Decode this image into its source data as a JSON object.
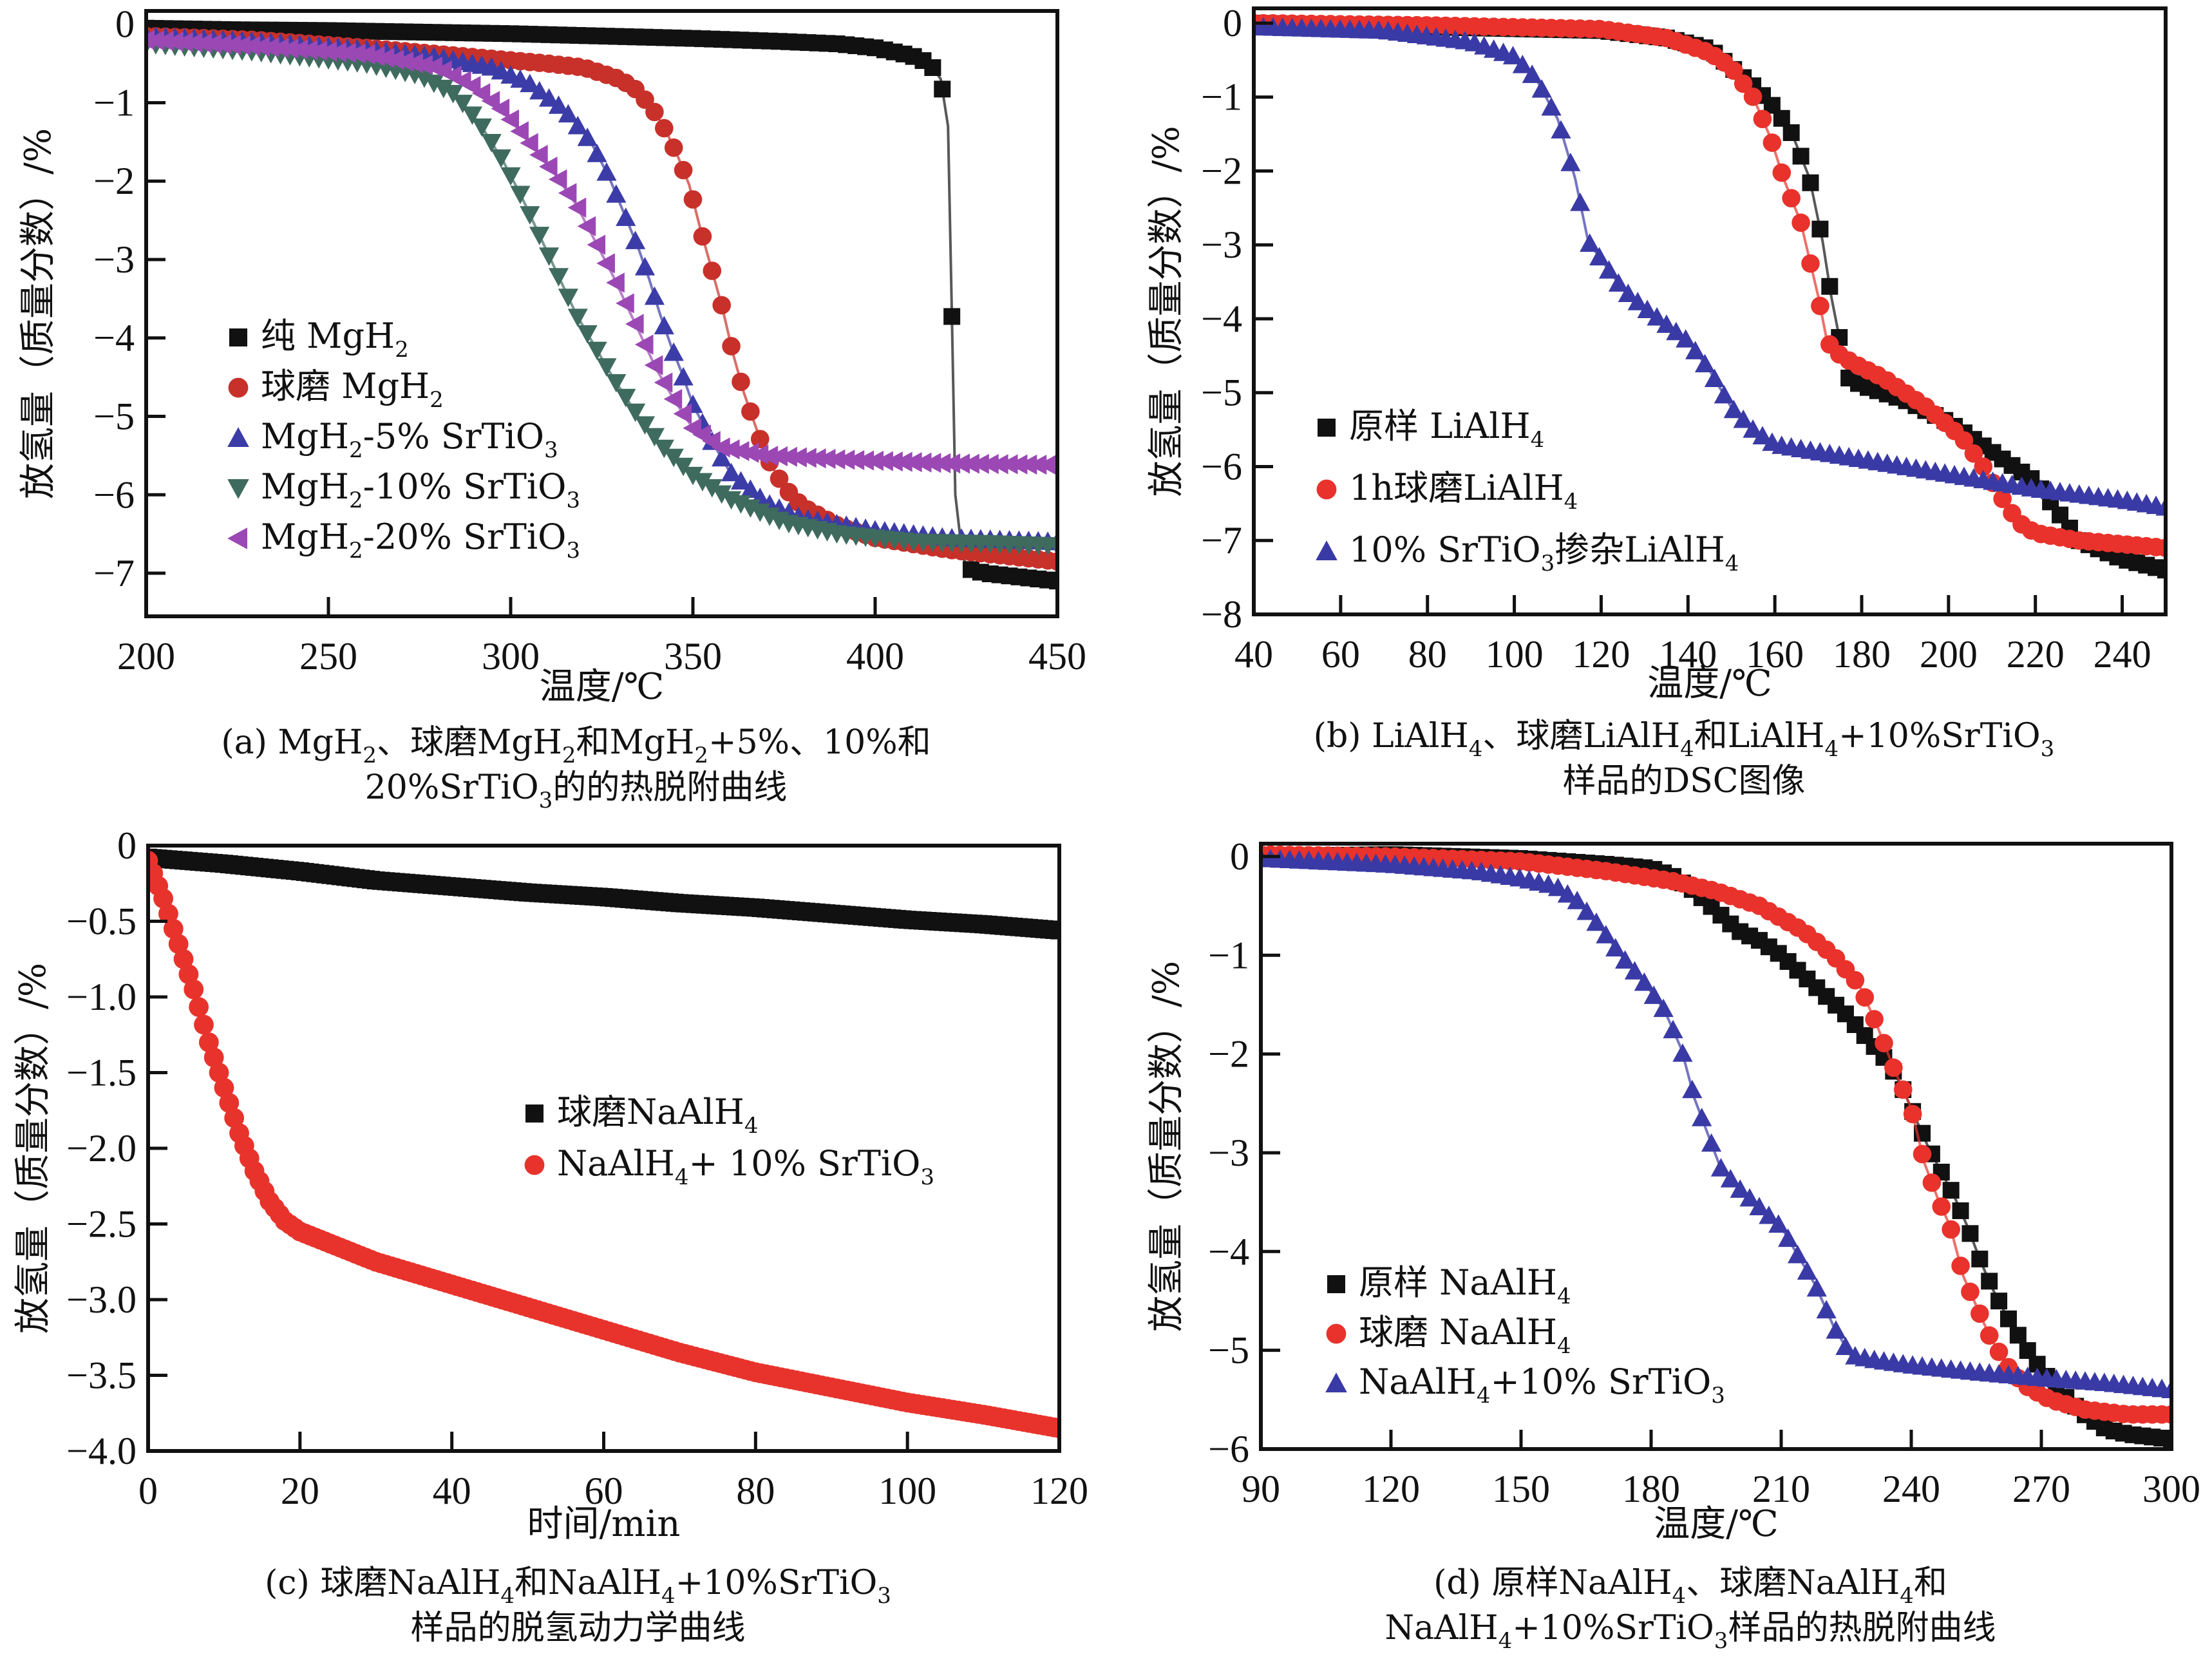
{
  "figure_title": "",
  "chart_data": [
    {
      "id": "a",
      "type": "line",
      "caption": [
        "(a)  MgH₂、球磨MgH₂和MgH₂+5%、10%和",
        "20%SrTiO₃的的热脱附曲线"
      ],
      "xlabel": "温度/℃",
      "ylabel": "放氢量（质量分数）/%",
      "xlim": [
        200,
        450
      ],
      "ylim": [
        -7.55,
        0.17
      ],
      "xticks": [
        200,
        250,
        300,
        350,
        400,
        450
      ],
      "xtick_labels": [
        "200",
        "250",
        "300",
        "350",
        "400",
        "450"
      ],
      "yticks": [
        0,
        -1,
        -2,
        -3,
        -4,
        -5,
        -6,
        -7
      ],
      "ytick_labels": [
        "0",
        "−1",
        "−2",
        "−3",
        "−4",
        "−5",
        "−6",
        "−7"
      ],
      "legend_position": "center-left",
      "series": [
        {
          "name": "纯 MgH₂",
          "color": "#111111",
          "marker": "square",
          "x": [
            200,
            225,
            250,
            275,
            300,
            325,
            350,
            375,
            390,
            400,
            410,
            415,
            418,
            420,
            421,
            422,
            424,
            426,
            430,
            440,
            450
          ],
          "y": [
            -0.05,
            -0.07,
            -0.08,
            -0.1,
            -0.12,
            -0.15,
            -0.18,
            -0.22,
            -0.25,
            -0.3,
            -0.4,
            -0.5,
            -0.7,
            -1.3,
            -3.6,
            -6.0,
            -6.8,
            -6.95,
            -7.0,
            -7.05,
            -7.1
          ]
        },
        {
          "name": "球磨 MgH₂",
          "color": "#c8302a",
          "marker": "circle",
          "x": [
            200,
            230,
            260,
            290,
            310,
            320,
            330,
            335,
            340,
            343,
            346,
            349,
            352,
            355,
            358,
            361,
            364,
            367,
            370,
            375,
            380,
            390,
            400,
            420,
            440,
            450
          ],
          "y": [
            -0.15,
            -0.2,
            -0.3,
            -0.42,
            -0.5,
            -0.55,
            -0.7,
            -0.85,
            -1.15,
            -1.4,
            -1.7,
            -2.05,
            -2.6,
            -3.1,
            -3.6,
            -4.2,
            -4.7,
            -5.1,
            -5.5,
            -5.9,
            -6.15,
            -6.4,
            -6.55,
            -6.7,
            -6.8,
            -6.85
          ]
        },
        {
          "name": "MgH₂-5% SrTiO₃",
          "color": "#3c3ca8",
          "marker": "triangle-up",
          "x": [
            200,
            230,
            260,
            280,
            295,
            305,
            315,
            322,
            327,
            331,
            335,
            338,
            341,
            344,
            347,
            350,
            355,
            360,
            370,
            380,
            400,
            420,
            450
          ],
          "y": [
            -0.15,
            -0.22,
            -0.32,
            -0.42,
            -0.55,
            -0.75,
            -1.1,
            -1.5,
            -1.95,
            -2.4,
            -2.85,
            -3.25,
            -3.7,
            -4.1,
            -4.45,
            -4.85,
            -5.3,
            -5.7,
            -6.1,
            -6.3,
            -6.45,
            -6.55,
            -6.6
          ]
        },
        {
          "name": "MgH₂-10% SrTiO₃",
          "color": "#3f6b5f",
          "marker": "triangle-down",
          "x": [
            200,
            230,
            260,
            275,
            285,
            292,
            298,
            303,
            308,
            313,
            318,
            323,
            328,
            335,
            342,
            350,
            360,
            375,
            390,
            410,
            430,
            450
          ],
          "y": [
            -0.25,
            -0.35,
            -0.5,
            -0.65,
            -0.9,
            -1.3,
            -1.75,
            -2.2,
            -2.7,
            -3.2,
            -3.7,
            -4.1,
            -4.5,
            -5.0,
            -5.4,
            -5.75,
            -6.05,
            -6.35,
            -6.5,
            -6.6,
            -6.62,
            -6.65
          ]
        },
        {
          "name": "MgH₂-20% SrTiO₃",
          "color": "#9b48b5",
          "marker": "triangle-left",
          "x": [
            200,
            230,
            260,
            280,
            290,
            298,
            305,
            312,
            318,
            323,
            328,
            332,
            336,
            340,
            345,
            350,
            358,
            370,
            390,
            420,
            450
          ],
          "y": [
            -0.2,
            -0.28,
            -0.38,
            -0.55,
            -0.8,
            -1.1,
            -1.5,
            -1.9,
            -2.3,
            -2.75,
            -3.2,
            -3.6,
            -4.0,
            -4.4,
            -4.8,
            -5.15,
            -5.4,
            -5.5,
            -5.55,
            -5.6,
            -5.62
          ]
        }
      ]
    },
    {
      "id": "b",
      "type": "line",
      "caption": [
        "(b) LiAlH₄、球磨LiAlH₄和LiAlH₄+10%SrTiO₃",
        "样品的DSC图像"
      ],
      "xlabel": "温度/℃",
      "ylabel": "放氢量（质量分数）/%",
      "xlim": [
        40,
        250
      ],
      "ylim": [
        -8,
        0.2
      ],
      "xticks": [
        40,
        60,
        80,
        100,
        120,
        140,
        160,
        180,
        200,
        220,
        240
      ],
      "xtick_labels": [
        "40",
        "60",
        "80",
        "100",
        "120",
        "140",
        "160",
        "180",
        "200",
        "220",
        "240"
      ],
      "yticks": [
        0,
        -1,
        -2,
        -3,
        -4,
        -5,
        -6,
        -7,
        -8
      ],
      "ytick_labels": [
        "0",
        "−1",
        "−2",
        "−3",
        "−4",
        "−5",
        "−6",
        "−7",
        "−8"
      ],
      "legend_position": "lower-left",
      "series": [
        {
          "name": "原样 LiAlH₄",
          "color": "#111111",
          "marker": "square",
          "x": [
            40,
            80,
            120,
            135,
            145,
            150,
            155,
            160,
            164,
            168,
            171,
            173,
            175,
            177,
            180,
            190,
            200,
            210,
            215,
            220,
            225,
            230,
            240,
            250
          ],
          "y": [
            0,
            -0.05,
            -0.1,
            -0.2,
            -0.35,
            -0.6,
            -0.85,
            -1.15,
            -1.5,
            -2.1,
            -2.95,
            -3.7,
            -4.3,
            -4.8,
            -4.9,
            -5.1,
            -5.4,
            -5.8,
            -6.0,
            -6.2,
            -6.6,
            -7.0,
            -7.25,
            -7.4
          ]
        },
        {
          "name": "1h球磨LiAlH₄",
          "color": "#e8322b",
          "marker": "circle",
          "x": [
            40,
            80,
            120,
            135,
            145,
            150,
            155,
            159,
            162,
            166,
            170,
            172,
            174,
            178,
            185,
            195,
            203,
            208,
            212,
            216,
            220,
            230,
            240,
            250
          ],
          "y": [
            0,
            -0.03,
            -0.08,
            -0.2,
            -0.4,
            -0.6,
            -1.0,
            -1.55,
            -2.1,
            -2.7,
            -3.7,
            -4.3,
            -4.45,
            -4.6,
            -4.8,
            -5.2,
            -5.6,
            -6.0,
            -6.4,
            -6.75,
            -6.9,
            -7.0,
            -7.05,
            -7.1
          ]
        },
        {
          "name": "10% SrTiO₃掺杂LiAlH₄",
          "color": "#3a3aa6",
          "marker": "triangle-up",
          "x": [
            40,
            70,
            90,
            100,
            105,
            110,
            114,
            117,
            120,
            125,
            130,
            140,
            145,
            150,
            155,
            160,
            170,
            180,
            200,
            220,
            240,
            250
          ],
          "y": [
            -0.05,
            -0.1,
            -0.25,
            -0.45,
            -0.75,
            -1.3,
            -2.1,
            -2.95,
            -3.2,
            -3.6,
            -3.85,
            -4.3,
            -4.7,
            -5.2,
            -5.5,
            -5.7,
            -5.8,
            -5.9,
            -6.1,
            -6.3,
            -6.45,
            -6.55
          ]
        }
      ]
    },
    {
      "id": "c",
      "type": "line",
      "caption": [
        "(c) 球磨NaAlH₄和NaAlH₄+10%SrTiO₃",
        "样品的脱氢动力学曲线"
      ],
      "xlabel": "时间/min",
      "ylabel": "放氢量（质量分数）/%",
      "xlim": [
        0,
        120
      ],
      "ylim": [
        -4.0,
        0
      ],
      "xticks": [
        0,
        20,
        40,
        60,
        80,
        100,
        120
      ],
      "xtick_labels": [
        "0",
        "20",
        "40",
        "60",
        "80",
        "100",
        "120"
      ],
      "yticks": [
        0,
        -0.5,
        -1.0,
        -1.5,
        -2.0,
        -2.5,
        -3.0,
        -3.5,
        -4.0
      ],
      "ytick_labels": [
        "0",
        "−0.5",
        "−1.0",
        "−1.5",
        "−2.0",
        "−2.5",
        "−3.0",
        "−3.5",
        "−4.0"
      ],
      "legend_position": "center",
      "series": [
        {
          "name": "球磨NaAlH₄",
          "color": "#111111",
          "marker": "square",
          "x": [
            0,
            10,
            20,
            30,
            40,
            50,
            60,
            70,
            80,
            90,
            100,
            110,
            120
          ],
          "y": [
            -0.08,
            -0.12,
            -0.17,
            -0.23,
            -0.27,
            -0.31,
            -0.34,
            -0.38,
            -0.41,
            -0.45,
            -0.49,
            -0.52,
            -0.56
          ]
        },
        {
          "name": "NaAlH₄+ 10% SrTiO₃",
          "color": "#e8332c",
          "marker": "circle",
          "x": [
            0,
            2,
            4,
            6,
            8,
            10,
            12,
            14,
            16,
            18,
            20,
            25,
            30,
            40,
            50,
            60,
            70,
            80,
            90,
            100,
            110,
            120
          ],
          "y": [
            -0.1,
            -0.35,
            -0.65,
            -0.95,
            -1.3,
            -1.6,
            -1.9,
            -2.15,
            -2.35,
            -2.48,
            -2.55,
            -2.65,
            -2.75,
            -2.9,
            -3.05,
            -3.2,
            -3.35,
            -3.48,
            -3.58,
            -3.68,
            -3.76,
            -3.85
          ]
        }
      ]
    },
    {
      "id": "d",
      "type": "line",
      "caption": [
        "(d) 原样NaAlH₄、球磨NaAlH₄和",
        "NaAlH₄+10%SrTiO₃样品的热脱附曲线"
      ],
      "xlabel": "温度/℃",
      "ylabel": "放氢量（质量分数）/%",
      "xlim": [
        90,
        300
      ],
      "ylim": [
        -6,
        0.13
      ],
      "xticks": [
        90,
        120,
        150,
        180,
        210,
        240,
        270,
        300
      ],
      "xtick_labels": [
        "90",
        "120",
        "150",
        "180",
        "210",
        "240",
        "270",
        "300"
      ],
      "yticks": [
        0,
        -1,
        -2,
        -3,
        -4,
        -5,
        -6
      ],
      "ytick_labels": [
        "0",
        "−1",
        "−2",
        "−3",
        "−4",
        "−5",
        "−6"
      ],
      "legend_position": "lower-left",
      "series": [
        {
          "name": "原样 NaAlH₄",
          "color": "#111111",
          "marker": "square",
          "x": [
            90,
            120,
            150,
            170,
            180,
            185,
            190,
            195,
            200,
            205,
            210,
            215,
            220,
            225,
            230,
            235,
            238,
            241,
            244,
            247,
            250,
            253,
            256,
            259,
            262,
            266,
            270,
            275,
            280,
            285,
            290,
            300
          ],
          "y": [
            0,
            0.02,
            -0.02,
            -0.08,
            -0.12,
            -0.2,
            -0.35,
            -0.55,
            -0.75,
            -0.85,
            -1.0,
            -1.2,
            -1.4,
            -1.6,
            -1.85,
            -2.1,
            -2.35,
            -2.65,
            -2.95,
            -3.2,
            -3.45,
            -3.75,
            -4.1,
            -4.4,
            -4.65,
            -4.95,
            -5.2,
            -5.45,
            -5.65,
            -5.8,
            -5.85,
            -5.9
          ]
        },
        {
          "name": "球磨 NaAlH₄",
          "color": "#e8322b",
          "marker": "circle",
          "x": [
            90,
            120,
            150,
            170,
            185,
            195,
            205,
            215,
            222,
            228,
            232,
            236,
            240,
            243,
            246,
            249,
            252,
            255,
            258,
            262,
            266,
            272,
            280,
            290,
            300
          ],
          "y": [
            0.02,
            0.0,
            -0.05,
            -0.15,
            -0.25,
            -0.35,
            -0.5,
            -0.75,
            -1.0,
            -1.3,
            -1.7,
            -2.15,
            -2.55,
            -3.1,
            -3.45,
            -3.75,
            -4.25,
            -4.55,
            -4.85,
            -5.15,
            -5.35,
            -5.5,
            -5.6,
            -5.65,
            -5.65
          ]
        },
        {
          "name": "NaAlH₄+10% SrTiO₃",
          "color": "#3a3aa6",
          "marker": "triangle-up",
          "x": [
            90,
            120,
            140,
            150,
            158,
            163,
            168,
            173,
            178,
            183,
            187,
            190,
            193,
            196,
            200,
            205,
            210,
            214,
            218,
            222,
            226,
            232,
            240,
            255,
            270,
            285,
            300
          ],
          "y": [
            -0.02,
            -0.08,
            -0.15,
            -0.22,
            -0.3,
            -0.45,
            -0.7,
            -1.0,
            -1.25,
            -1.55,
            -1.95,
            -2.45,
            -2.8,
            -3.15,
            -3.35,
            -3.55,
            -3.75,
            -4.05,
            -4.35,
            -4.75,
            -5.05,
            -5.1,
            -5.15,
            -5.22,
            -5.28,
            -5.33,
            -5.4
          ]
        }
      ]
    }
  ]
}
